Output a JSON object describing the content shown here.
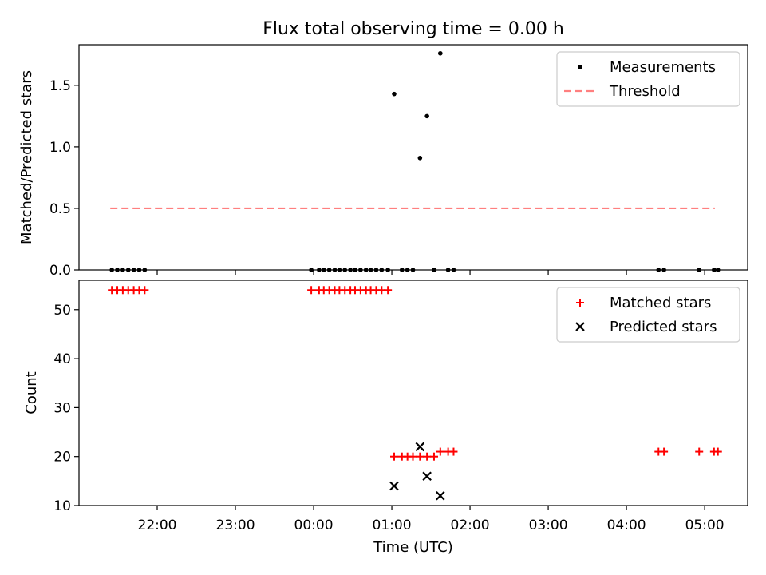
{
  "chart_data": {
    "type": "scatter",
    "title": "Flux total observing time = 0.00 h",
    "xlabel": "Time (UTC)",
    "x_unit": "hours since 00:00 (negative = previous day)",
    "xlim": [
      -3.0,
      5.55
    ],
    "x_ticks": [
      {
        "value": -2,
        "label": "22:00"
      },
      {
        "value": -1,
        "label": "23:00"
      },
      {
        "value": 0,
        "label": "00:00"
      },
      {
        "value": 1,
        "label": "01:00"
      },
      {
        "value": 2,
        "label": "02:00"
      },
      {
        "value": 3,
        "label": "03:00"
      },
      {
        "value": 4,
        "label": "04:00"
      },
      {
        "value": 5,
        "label": "05:00"
      }
    ],
    "panels": [
      {
        "id": "ratio",
        "ylabel": "Matched/Predicted stars",
        "ylim": [
          0,
          1.83
        ],
        "y_ticks": [
          {
            "value": 0.0,
            "label": "0.0"
          },
          {
            "value": 0.5,
            "label": "0.5"
          },
          {
            "value": 1.0,
            "label": "1.0"
          },
          {
            "value": 1.5,
            "label": "1.5"
          }
        ],
        "legend_position": "top-right",
        "series": [
          {
            "name": "Measurements",
            "marker": "dot",
            "color": "#000000",
            "points": [
              [
                -2.58,
                0
              ],
              [
                -2.51,
                0
              ],
              [
                -2.44,
                0
              ],
              [
                -2.37,
                0
              ],
              [
                -2.3,
                0
              ],
              [
                -2.23,
                0
              ],
              [
                -2.16,
                0
              ],
              [
                -0.03,
                0
              ],
              [
                0.07,
                0
              ],
              [
                0.13,
                0
              ],
              [
                0.2,
                0
              ],
              [
                0.27,
                0
              ],
              [
                0.33,
                0
              ],
              [
                0.4,
                0
              ],
              [
                0.47,
                0
              ],
              [
                0.53,
                0
              ],
              [
                0.6,
                0
              ],
              [
                0.67,
                0
              ],
              [
                0.73,
                0
              ],
              [
                0.8,
                0
              ],
              [
                0.87,
                0
              ],
              [
                0.95,
                0
              ],
              [
                1.03,
                1.43
              ],
              [
                1.13,
                0
              ],
              [
                1.2,
                0
              ],
              [
                1.27,
                0
              ],
              [
                1.36,
                0.91
              ],
              [
                1.45,
                1.25
              ],
              [
                1.54,
                0
              ],
              [
                1.62,
                1.76
              ],
              [
                1.72,
                0
              ],
              [
                1.79,
                0
              ],
              [
                4.41,
                0
              ],
              [
                4.48,
                0
              ],
              [
                4.93,
                0
              ],
              [
                5.12,
                0
              ],
              [
                5.17,
                0
              ]
            ]
          },
          {
            "name": "Threshold",
            "marker": "dashed-line",
            "color": "#ff7f7f",
            "points": [
              [
                -2.6,
                0.5
              ],
              [
                5.13,
                0.5
              ]
            ]
          }
        ]
      },
      {
        "id": "counts",
        "ylabel": "Count",
        "ylim": [
          10,
          56
        ],
        "y_ticks": [
          {
            "value": 10,
            "label": "10"
          },
          {
            "value": 20,
            "label": "20"
          },
          {
            "value": 30,
            "label": "30"
          },
          {
            "value": 40,
            "label": "40"
          },
          {
            "value": 50,
            "label": "50"
          }
        ],
        "legend_position": "top-right",
        "series": [
          {
            "name": "Matched stars",
            "marker": "plus",
            "color": "#ff0000",
            "points": [
              [
                -2.58,
                54
              ],
              [
                -2.51,
                54
              ],
              [
                -2.44,
                54
              ],
              [
                -2.37,
                54
              ],
              [
                -2.3,
                54
              ],
              [
                -2.23,
                54
              ],
              [
                -2.16,
                54
              ],
              [
                -0.03,
                54
              ],
              [
                0.07,
                54
              ],
              [
                0.13,
                54
              ],
              [
                0.2,
                54
              ],
              [
                0.27,
                54
              ],
              [
                0.33,
                54
              ],
              [
                0.4,
                54
              ],
              [
                0.47,
                54
              ],
              [
                0.53,
                54
              ],
              [
                0.6,
                54
              ],
              [
                0.67,
                54
              ],
              [
                0.73,
                54
              ],
              [
                0.8,
                54
              ],
              [
                0.87,
                54
              ],
              [
                0.95,
                54
              ],
              [
                1.03,
                20
              ],
              [
                1.13,
                20
              ],
              [
                1.2,
                20
              ],
              [
                1.27,
                20
              ],
              [
                1.36,
                20
              ],
              [
                1.45,
                20
              ],
              [
                1.54,
                20
              ],
              [
                1.62,
                21
              ],
              [
                1.72,
                21
              ],
              [
                1.79,
                21
              ],
              [
                4.41,
                21
              ],
              [
                4.48,
                21
              ],
              [
                4.93,
                21
              ],
              [
                5.12,
                21
              ],
              [
                5.17,
                21
              ]
            ]
          },
          {
            "name": "Predicted stars",
            "marker": "x",
            "color": "#000000",
            "points": [
              [
                1.03,
                14
              ],
              [
                1.36,
                22
              ],
              [
                1.45,
                16
              ],
              [
                1.62,
                12
              ]
            ]
          }
        ]
      }
    ]
  }
}
